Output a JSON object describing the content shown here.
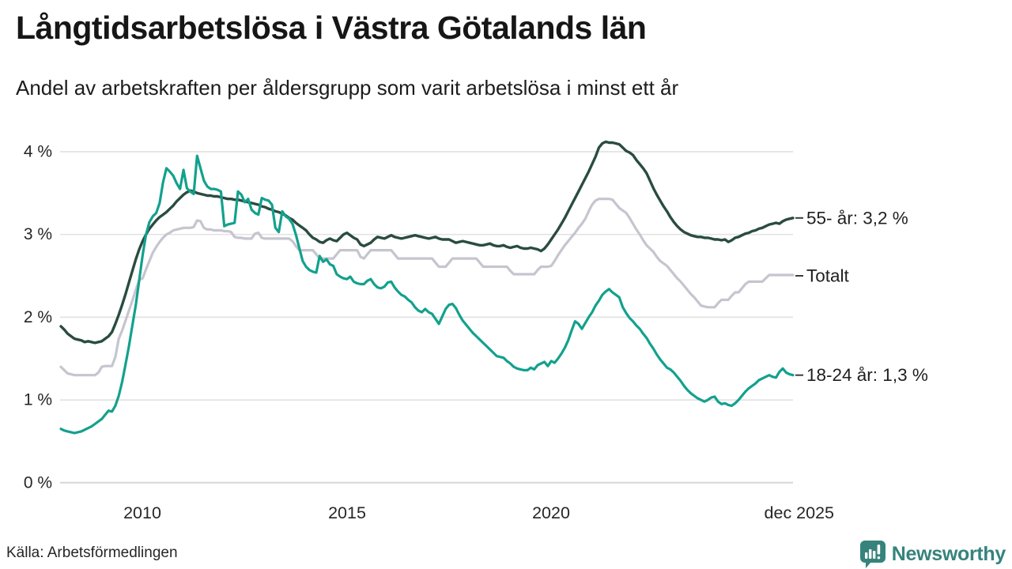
{
  "header": {
    "title": "Långtidsarbetslösa i Västra Götalands län",
    "subtitle": "Andel av arbetskraften per åldersgrupp som varit arbetslösa i minst ett år"
  },
  "footer": {
    "source": "Källa: Arbetsförmedlingen",
    "brand": "Newsworthy",
    "brand_color": "#36837c",
    "brand_icon": "speech-bubble-bar-chart-icon"
  },
  "chart_data": {
    "type": "line",
    "title": "Långtidsarbetslösa i Västra Götalands län",
    "subtitle": "Andel av arbetskraften per åldersgrupp som varit arbetslösa i minst ett år",
    "unit": "%",
    "grid": "horizontal-only",
    "legend_position": "right-end-labels",
    "x_axis": {
      "start": "2008-01",
      "end": "2025-12",
      "months": 216,
      "ticks": [
        {
          "label": "2010",
          "month_index": 24
        },
        {
          "label": "2015",
          "month_index": 84
        },
        {
          "label": "2020",
          "month_index": 144
        },
        {
          "label": "dec 2025",
          "month_index": 215
        }
      ]
    },
    "y_axis": {
      "values": [
        0,
        1,
        2,
        3,
        4
      ],
      "tick_labels": [
        "0 %",
        "1 %",
        "2 %",
        "3 %",
        "4 %"
      ],
      "range": [
        0,
        4.3
      ]
    },
    "series": [
      {
        "name": "55- år",
        "end_label": "55- år: 3,2 %",
        "end_value": 3.2,
        "color": "#2a4c40",
        "stroke_width": 3.4,
        "draw_order": 1,
        "values": [
          1.89,
          1.85,
          1.8,
          1.77,
          1.74,
          1.73,
          1.72,
          1.7,
          1.71,
          1.7,
          1.69,
          1.7,
          1.71,
          1.74,
          1.77,
          1.82,
          1.92,
          2.03,
          2.15,
          2.28,
          2.42,
          2.56,
          2.7,
          2.82,
          2.92,
          3.0,
          3.07,
          3.12,
          3.17,
          3.21,
          3.24,
          3.27,
          3.31,
          3.35,
          3.4,
          3.44,
          3.48,
          3.51,
          3.53,
          3.52,
          3.5,
          3.49,
          3.48,
          3.47,
          3.47,
          3.46,
          3.46,
          3.45,
          3.44,
          3.43,
          3.43,
          3.42,
          3.42,
          3.41,
          3.4,
          3.39,
          3.38,
          3.37,
          3.36,
          3.34,
          3.33,
          3.31,
          3.3,
          3.28,
          3.27,
          3.25,
          3.23,
          3.2,
          3.18,
          3.14,
          3.11,
          3.08,
          3.05,
          3.0,
          2.96,
          2.94,
          2.91,
          2.9,
          2.93,
          2.95,
          2.93,
          2.92,
          2.96,
          3.0,
          3.02,
          2.99,
          2.96,
          2.94,
          2.88,
          2.86,
          2.88,
          2.9,
          2.94,
          2.97,
          2.96,
          2.95,
          2.97,
          2.99,
          2.97,
          2.96,
          2.95,
          2.96,
          2.97,
          2.98,
          2.99,
          2.98,
          2.97,
          2.96,
          2.95,
          2.96,
          2.97,
          2.95,
          2.94,
          2.94,
          2.94,
          2.92,
          2.9,
          2.91,
          2.92,
          2.91,
          2.9,
          2.89,
          2.88,
          2.87,
          2.87,
          2.88,
          2.89,
          2.87,
          2.86,
          2.86,
          2.87,
          2.85,
          2.84,
          2.85,
          2.86,
          2.84,
          2.83,
          2.83,
          2.84,
          2.83,
          2.82,
          2.8,
          2.83,
          2.88,
          2.94,
          3.0,
          3.06,
          3.13,
          3.2,
          3.28,
          3.36,
          3.44,
          3.52,
          3.6,
          3.68,
          3.76,
          3.85,
          3.94,
          4.05,
          4.1,
          4.12,
          4.11,
          4.11,
          4.1,
          4.09,
          4.05,
          4.01,
          3.99,
          3.96,
          3.9,
          3.85,
          3.8,
          3.74,
          3.65,
          3.56,
          3.48,
          3.41,
          3.34,
          3.28,
          3.21,
          3.15,
          3.1,
          3.06,
          3.03,
          3.01,
          2.99,
          2.98,
          2.97,
          2.97,
          2.96,
          2.96,
          2.95,
          2.94,
          2.94,
          2.93,
          2.94,
          2.91,
          2.93,
          2.96,
          2.97,
          2.99,
          3.01,
          3.02,
          3.04,
          3.05,
          3.07,
          3.08,
          3.1,
          3.12,
          3.13,
          3.14,
          3.13,
          3.16,
          3.18,
          3.19,
          3.2
        ]
      },
      {
        "name": "Totalt",
        "end_label": "Totalt",
        "end_value": 2.5,
        "color": "#c6c5cf",
        "stroke_width": 3.2,
        "draw_order": 0,
        "values": [
          1.4,
          1.36,
          1.32,
          1.31,
          1.3,
          1.3,
          1.3,
          1.3,
          1.3,
          1.3,
          1.3,
          1.33,
          1.4,
          1.41,
          1.41,
          1.41,
          1.52,
          1.74,
          1.84,
          1.96,
          2.08,
          2.2,
          2.33,
          2.45,
          2.47,
          2.58,
          2.68,
          2.78,
          2.85,
          2.91,
          2.96,
          3.0,
          3.02,
          3.05,
          3.06,
          3.07,
          3.08,
          3.08,
          3.08,
          3.09,
          3.17,
          3.16,
          3.08,
          3.06,
          3.06,
          3.05,
          3.05,
          3.05,
          3.04,
          3.04,
          3.03,
          2.97,
          2.96,
          2.96,
          2.95,
          2.95,
          2.95,
          3.01,
          3.02,
          2.96,
          2.95,
          2.95,
          2.95,
          2.95,
          2.95,
          2.95,
          2.95,
          2.95,
          2.92,
          2.86,
          2.81,
          2.81,
          2.81,
          2.81,
          2.81,
          2.76,
          2.71,
          2.71,
          2.71,
          2.71,
          2.71,
          2.76,
          2.81,
          2.81,
          2.81,
          2.81,
          2.81,
          2.81,
          2.73,
          2.71,
          2.76,
          2.81,
          2.81,
          2.81,
          2.81,
          2.81,
          2.81,
          2.81,
          2.76,
          2.71,
          2.71,
          2.71,
          2.71,
          2.71,
          2.71,
          2.71,
          2.71,
          2.71,
          2.71,
          2.71,
          2.66,
          2.61,
          2.61,
          2.61,
          2.66,
          2.71,
          2.71,
          2.71,
          2.71,
          2.71,
          2.71,
          2.71,
          2.71,
          2.66,
          2.61,
          2.61,
          2.61,
          2.61,
          2.61,
          2.61,
          2.61,
          2.61,
          2.56,
          2.52,
          2.52,
          2.52,
          2.52,
          2.52,
          2.52,
          2.52,
          2.57,
          2.61,
          2.61,
          2.61,
          2.62,
          2.68,
          2.75,
          2.81,
          2.87,
          2.92,
          2.97,
          3.02,
          3.08,
          3.13,
          3.19,
          3.28,
          3.36,
          3.41,
          3.43,
          3.43,
          3.43,
          3.43,
          3.42,
          3.37,
          3.32,
          3.29,
          3.26,
          3.2,
          3.13,
          3.06,
          3.0,
          2.93,
          2.87,
          2.83,
          2.79,
          2.73,
          2.68,
          2.65,
          2.62,
          2.57,
          2.52,
          2.47,
          2.43,
          2.38,
          2.33,
          2.28,
          2.24,
          2.19,
          2.14,
          2.13,
          2.12,
          2.12,
          2.12,
          2.17,
          2.21,
          2.21,
          2.21,
          2.26,
          2.3,
          2.3,
          2.35,
          2.4,
          2.43,
          2.43,
          2.43,
          2.43,
          2.43,
          2.47,
          2.51,
          2.51,
          2.51,
          2.51,
          2.51,
          2.51,
          2.51,
          2.51
        ]
      },
      {
        "name": "18-24 år",
        "end_label": "18-24 år: 1,3 %",
        "end_value": 1.3,
        "color": "#13a18d",
        "stroke_width": 3.2,
        "draw_order": 2,
        "values": [
          0.65,
          0.63,
          0.62,
          0.61,
          0.6,
          0.61,
          0.62,
          0.64,
          0.66,
          0.68,
          0.71,
          0.74,
          0.77,
          0.82,
          0.87,
          0.86,
          0.93,
          1.05,
          1.22,
          1.43,
          1.65,
          1.9,
          2.15,
          2.45,
          2.75,
          3.0,
          3.15,
          3.22,
          3.26,
          3.38,
          3.63,
          3.8,
          3.76,
          3.71,
          3.62,
          3.55,
          3.78,
          3.56,
          3.52,
          3.49,
          3.95,
          3.8,
          3.65,
          3.58,
          3.55,
          3.55,
          3.54,
          3.52,
          3.1,
          3.12,
          3.13,
          3.14,
          3.52,
          3.48,
          3.39,
          3.43,
          3.3,
          3.26,
          3.24,
          3.44,
          3.42,
          3.41,
          3.36,
          3.08,
          3.03,
          3.28,
          3.22,
          3.19,
          3.13,
          3.0,
          2.84,
          2.68,
          2.61,
          2.57,
          2.55,
          2.54,
          2.74,
          2.67,
          2.7,
          2.64,
          2.62,
          2.52,
          2.49,
          2.47,
          2.46,
          2.49,
          2.43,
          2.41,
          2.4,
          2.4,
          2.44,
          2.46,
          2.4,
          2.36,
          2.35,
          2.37,
          2.42,
          2.43,
          2.36,
          2.31,
          2.27,
          2.25,
          2.21,
          2.18,
          2.12,
          2.08,
          2.06,
          2.1,
          2.06,
          2.04,
          1.98,
          1.92,
          2.01,
          2.1,
          2.15,
          2.16,
          2.11,
          2.03,
          1.96,
          1.91,
          1.86,
          1.81,
          1.77,
          1.73,
          1.69,
          1.65,
          1.61,
          1.57,
          1.53,
          1.52,
          1.51,
          1.47,
          1.44,
          1.4,
          1.38,
          1.37,
          1.36,
          1.36,
          1.39,
          1.37,
          1.42,
          1.44,
          1.46,
          1.41,
          1.47,
          1.45,
          1.5,
          1.56,
          1.63,
          1.72,
          1.84,
          1.95,
          1.92,
          1.86,
          1.93,
          2.0,
          2.06,
          2.14,
          2.2,
          2.27,
          2.31,
          2.34,
          2.3,
          2.27,
          2.24,
          2.12,
          2.05,
          1.99,
          1.95,
          1.9,
          1.86,
          1.8,
          1.75,
          1.68,
          1.62,
          1.55,
          1.49,
          1.44,
          1.39,
          1.37,
          1.33,
          1.28,
          1.23,
          1.17,
          1.12,
          1.08,
          1.05,
          1.02,
          1.0,
          0.98,
          1.0,
          1.03,
          1.04,
          0.98,
          0.95,
          0.96,
          0.94,
          0.93,
          0.96,
          1.0,
          1.05,
          1.1,
          1.14,
          1.17,
          1.2,
          1.24,
          1.26,
          1.28,
          1.3,
          1.28,
          1.27,
          1.34,
          1.38,
          1.33,
          1.31,
          1.3
        ]
      }
    ],
    "style": {
      "gridline_color": "#e3e3e3",
      "zero_line_color": "#d6d6d6",
      "axis_text_color": "#262626",
      "label_text_color": "#1f1f1f",
      "label_tick_color": "#3c3c3c"
    }
  }
}
